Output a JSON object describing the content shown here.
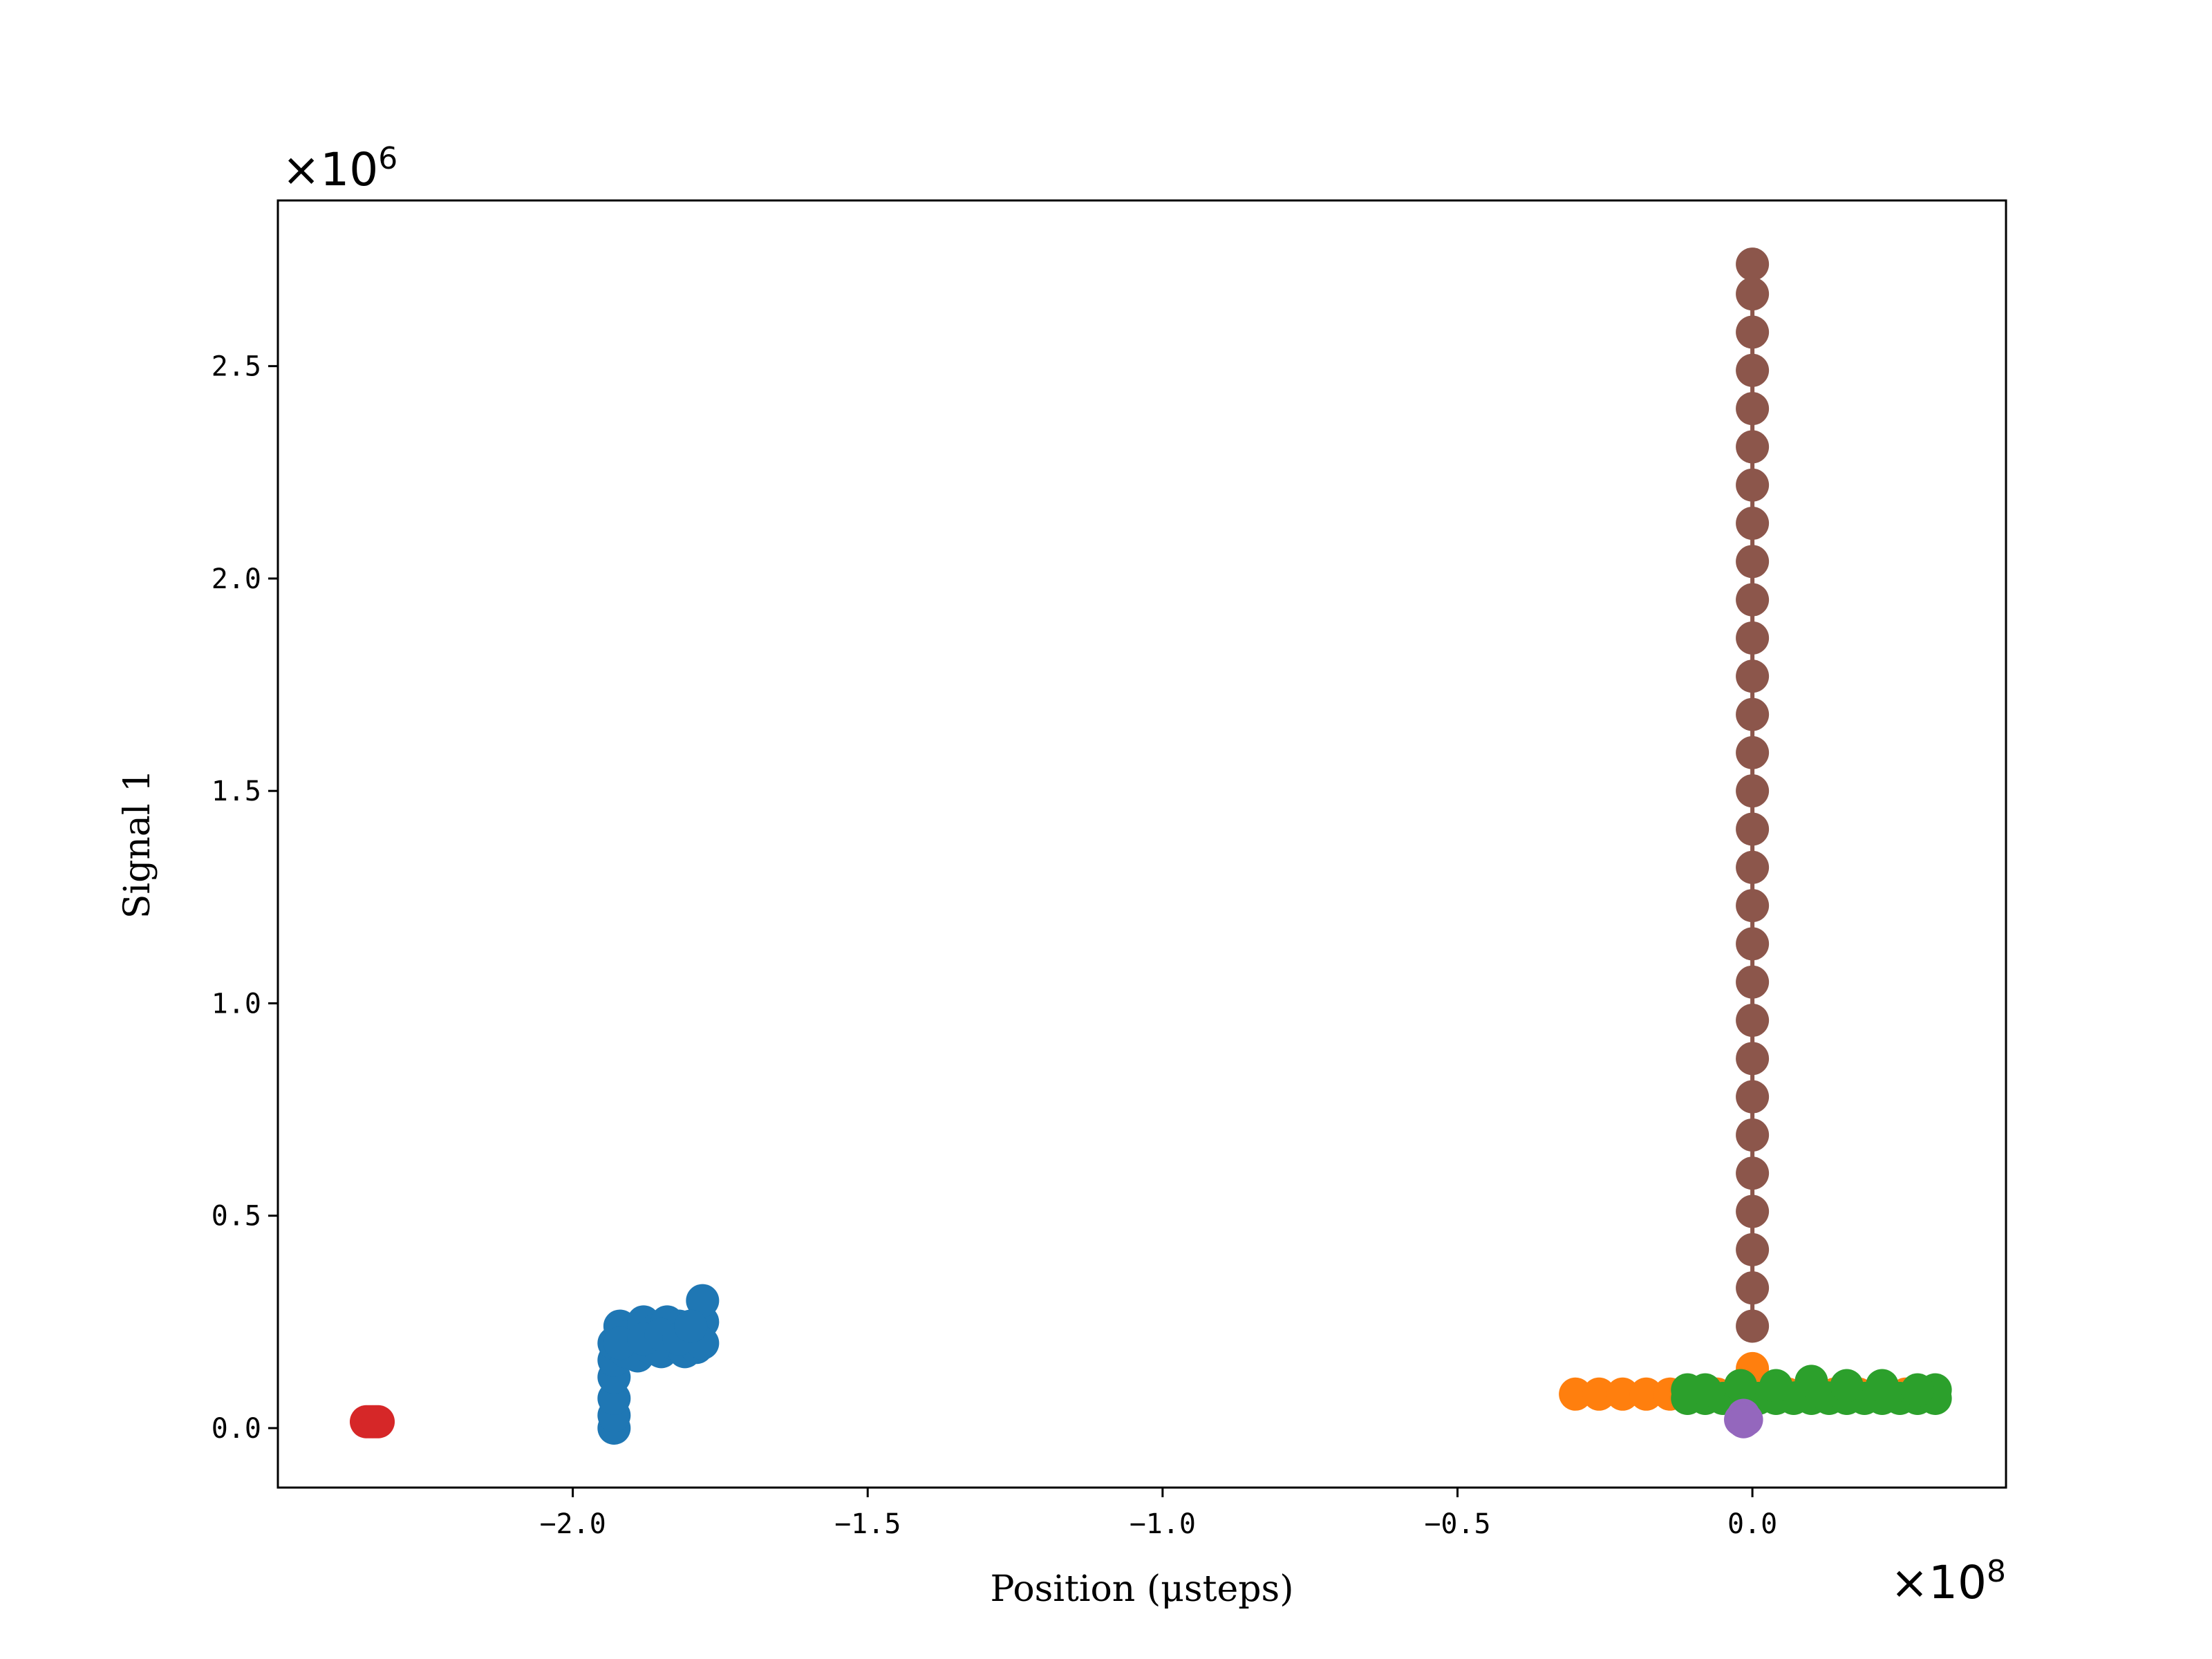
{
  "chart_data": {
    "type": "scatter",
    "title": "",
    "xlabel": "Position (μsteps)",
    "ylabel": "Signal 1",
    "x_offset_base": "×10",
    "x_offset_exp": "8",
    "y_offset_base": "×10",
    "y_offset_exp": "6",
    "xlim": [
      -2.5,
      0.43
    ],
    "ylim": [
      -0.14,
      2.89
    ],
    "x_ticks": [
      -2.0,
      -1.5,
      -1.0,
      -0.5,
      0.0
    ],
    "x_tick_labels": [
      "−2.0",
      "−1.5",
      "−1.0",
      "−0.5",
      "0.0"
    ],
    "y_ticks": [
      0.0,
      0.5,
      1.0,
      1.5,
      2.0,
      2.5
    ],
    "y_tick_labels": [
      "0.0",
      "0.5",
      "1.0",
      "1.5",
      "2.0",
      "2.5"
    ],
    "grid": false,
    "legend": "none",
    "series": [
      {
        "color": "#1f77b4",
        "line": true,
        "points": [
          [
            -1.93,
            0.0
          ],
          [
            -1.93,
            0.03
          ],
          [
            -1.93,
            0.07
          ],
          [
            -1.93,
            0.12
          ],
          [
            -1.93,
            0.16
          ],
          [
            -1.93,
            0.2
          ],
          [
            -1.92,
            0.24
          ],
          [
            -1.91,
            0.18
          ],
          [
            -1.9,
            0.22
          ],
          [
            -1.89,
            0.17
          ],
          [
            -1.88,
            0.25
          ],
          [
            -1.87,
            0.19
          ],
          [
            -1.86,
            0.23
          ],
          [
            -1.85,
            0.18
          ],
          [
            -1.84,
            0.25
          ],
          [
            -1.83,
            0.2
          ],
          [
            -1.82,
            0.24
          ],
          [
            -1.81,
            0.18
          ],
          [
            -1.8,
            0.22
          ],
          [
            -1.79,
            0.19
          ],
          [
            -1.78,
            0.25
          ],
          [
            -1.78,
            0.3
          ],
          [
            -1.78,
            0.2
          ],
          [
            -1.92,
            0.2
          ],
          [
            -1.88,
            0.21
          ],
          [
            -1.85,
            0.22
          ],
          [
            -1.82,
            0.21
          ],
          [
            -1.8,
            0.24
          ]
        ]
      },
      {
        "color": "#ff7f0e",
        "line": true,
        "points": [
          [
            -0.3,
            0.08
          ],
          [
            -0.26,
            0.08
          ],
          [
            -0.22,
            0.08
          ],
          [
            -0.18,
            0.08
          ],
          [
            -0.14,
            0.08
          ],
          [
            -0.1,
            0.08
          ],
          [
            -0.06,
            0.08
          ],
          [
            -0.02,
            0.08
          ],
          [
            0.0,
            0.14
          ],
          [
            0.02,
            0.08
          ],
          [
            0.06,
            0.08
          ],
          [
            0.1,
            0.08
          ],
          [
            0.14,
            0.08
          ],
          [
            0.18,
            0.08
          ],
          [
            0.22,
            0.08
          ],
          [
            0.26,
            0.08
          ],
          [
            0.3,
            0.08
          ]
        ]
      },
      {
        "color": "#2ca02c",
        "line": true,
        "points": [
          [
            -0.11,
            0.07
          ],
          [
            -0.08,
            0.07
          ],
          [
            -0.05,
            0.07
          ],
          [
            -0.02,
            0.07
          ],
          [
            0.01,
            0.07
          ],
          [
            0.04,
            0.07
          ],
          [
            0.07,
            0.07
          ],
          [
            0.1,
            0.07
          ],
          [
            0.13,
            0.07
          ],
          [
            0.16,
            0.07
          ],
          [
            0.19,
            0.07
          ],
          [
            0.22,
            0.07
          ],
          [
            0.25,
            0.07
          ],
          [
            0.28,
            0.07
          ],
          [
            0.31,
            0.07
          ],
          [
            0.31,
            0.09
          ],
          [
            0.28,
            0.09
          ],
          [
            0.22,
            0.1
          ],
          [
            0.16,
            0.1
          ],
          [
            0.1,
            0.11
          ],
          [
            0.04,
            0.1
          ],
          [
            -0.02,
            0.1
          ],
          [
            -0.08,
            0.09
          ],
          [
            -0.11,
            0.09
          ]
        ]
      },
      {
        "color": "#d62728",
        "line": true,
        "points": [
          [
            -2.35,
            0.015
          ],
          [
            -2.345,
            0.015
          ],
          [
            -2.34,
            0.015
          ],
          [
            -2.335,
            0.015
          ],
          [
            -2.33,
            0.015
          ]
        ]
      },
      {
        "color": "#9467bd",
        "line": true,
        "points": [
          [
            -0.02,
            0.02
          ],
          [
            -0.015,
            0.03
          ],
          [
            -0.01,
            0.02
          ],
          [
            -0.015,
            0.015
          ]
        ]
      },
      {
        "color": "#8c564b",
        "line": true,
        "points": [
          [
            0.0,
            0.24
          ],
          [
            0.0,
            0.33
          ],
          [
            0.0,
            0.42
          ],
          [
            0.0,
            0.51
          ],
          [
            0.0,
            0.6
          ],
          [
            0.0,
            0.69
          ],
          [
            0.0,
            0.78
          ],
          [
            0.0,
            0.87
          ],
          [
            0.0,
            0.96
          ],
          [
            0.0,
            1.05
          ],
          [
            0.0,
            1.14
          ],
          [
            0.0,
            1.23
          ],
          [
            0.0,
            1.32
          ],
          [
            0.0,
            1.41
          ],
          [
            0.0,
            1.5
          ],
          [
            0.0,
            1.59
          ],
          [
            0.0,
            1.68
          ],
          [
            0.0,
            1.77
          ],
          [
            0.0,
            1.86
          ],
          [
            0.0,
            1.95
          ],
          [
            0.0,
            2.04
          ],
          [
            0.0,
            2.13
          ],
          [
            0.0,
            2.22
          ],
          [
            0.0,
            2.31
          ],
          [
            0.0,
            2.4
          ],
          [
            0.0,
            2.49
          ],
          [
            0.0,
            2.58
          ],
          [
            0.0,
            2.67
          ],
          [
            0.0,
            2.74
          ]
        ]
      }
    ]
  }
}
